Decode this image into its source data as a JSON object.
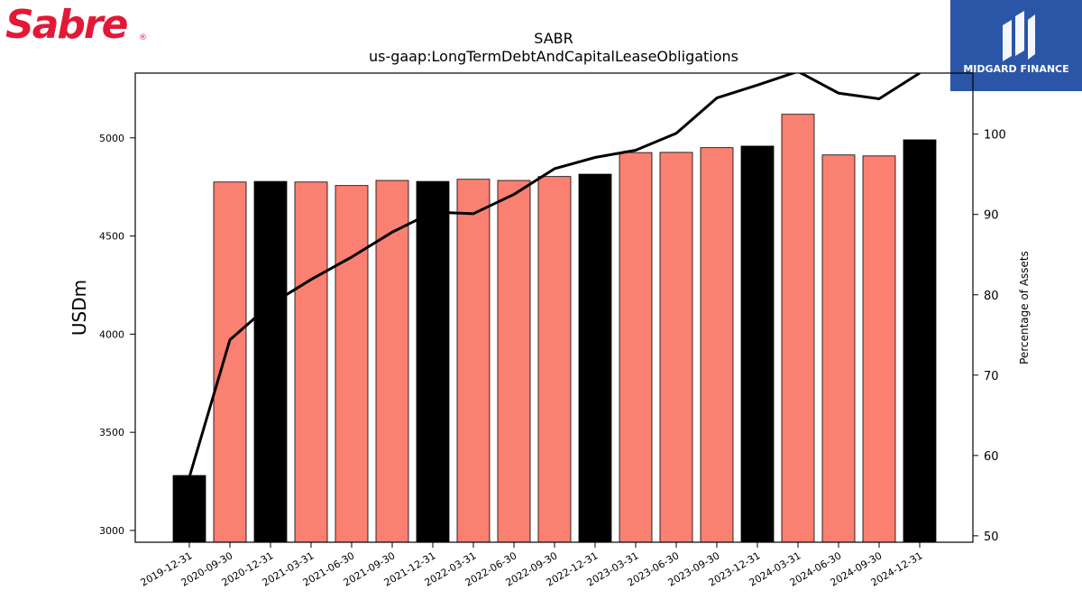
{
  "brand": {
    "name": "Sabre",
    "trademark": "®",
    "color": "#e31837"
  },
  "partner": {
    "name": "MIDGARD FINANCE",
    "background": "#2b56a8"
  },
  "chart_data": {
    "type": "bar+line",
    "title": "SABR",
    "subtitle": "us-gaap:LongTermDebtAndCapitalLeaseObligations",
    "ylabel": "USDm",
    "y2label": "Percentage of Assets",
    "ylim": [
      2940,
      5330
    ],
    "y2lim": [
      49.2,
      107.6
    ],
    "yticks": [
      3000,
      3500,
      4000,
      4500,
      5000
    ],
    "y2ticks": [
      50,
      60,
      70,
      80,
      90,
      100
    ],
    "categories": [
      "2019-12-31",
      "2020-09-30",
      "2020-12-31",
      "2021-03-31",
      "2021-06-30",
      "2021-09-30",
      "2021-12-31",
      "2022-03-31",
      "2022-06-30",
      "2022-09-30",
      "2022-12-31",
      "2023-03-31",
      "2023-06-30",
      "2023-09-30",
      "2023-12-31",
      "2024-03-31",
      "2024-06-30",
      "2024-09-30",
      "2024-12-31"
    ],
    "series": [
      {
        "kind": "bar",
        "values": [
          3280,
          4775,
          4778,
          4775,
          4757,
          4783,
          4778,
          4789,
          4783,
          4803,
          4815,
          4925,
          4926,
          4950,
          4958,
          5120,
          4913,
          4908,
          4990
        ],
        "fiscal_year_end": [
          true,
          false,
          true,
          false,
          false,
          false,
          true,
          false,
          false,
          false,
          true,
          false,
          false,
          false,
          true,
          false,
          false,
          false,
          true
        ],
        "color_fy": "#000000",
        "color_other": "#fa8072"
      },
      {
        "kind": "line",
        "axis": "right",
        "values": [
          57.3,
          74.4,
          78.8,
          81.9,
          84.7,
          87.8,
          90.3,
          90.1,
          92.5,
          95.7,
          97.1,
          98.0,
          100.1,
          104.5,
          106.1,
          107.8,
          105.1,
          104.4,
          107.6
        ],
        "color": "#000000"
      }
    ],
    "grid": false,
    "legend": "none"
  }
}
